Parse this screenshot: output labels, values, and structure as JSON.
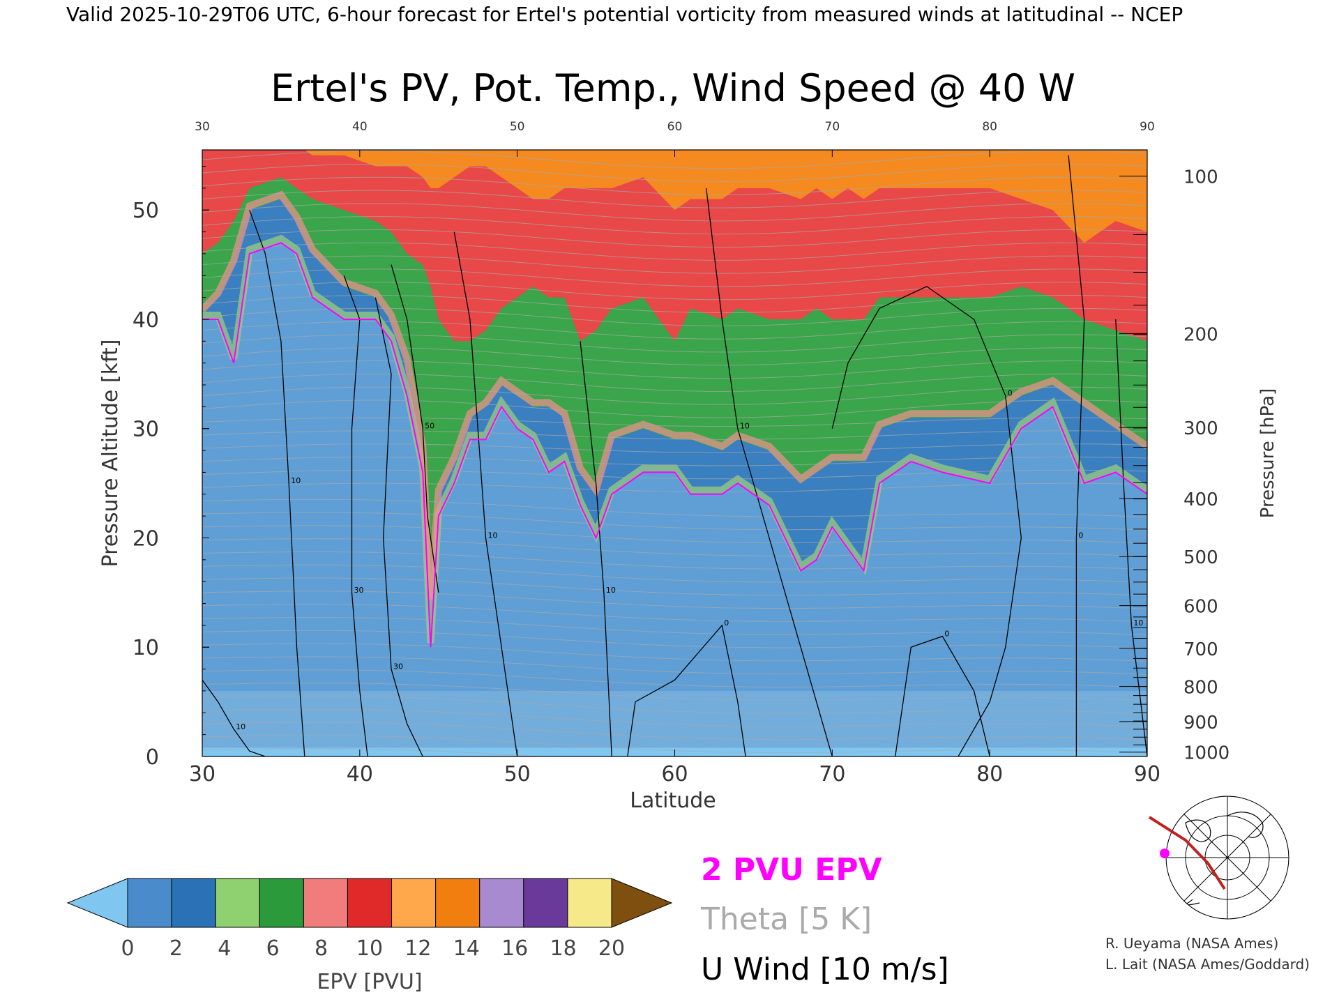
{
  "header": {
    "valid_line": "Valid 2025-10-29T06 UTC, 6-hour forecast for Ertel's potential vorticity from measured winds at latitudinal -- NCEP"
  },
  "chart_data": {
    "type": "heatmap",
    "title": "Ertel's PV, Pot. Temp., Wind Speed @ 40 W",
    "xlabel": "Latitude",
    "ylabel": "Pressure Altitude [kft]",
    "y2label": "Pressure [hPa]",
    "xlim": [
      30,
      90
    ],
    "ylim": [
      0,
      55.5
    ],
    "x_ticks": [
      30,
      40,
      50,
      60,
      70,
      80,
      90
    ],
    "x_tick_labels": [
      "30",
      "40",
      "50",
      "60",
      "70",
      "80",
      "90"
    ],
    "top_tick_labels": [
      "30",
      "40",
      "50",
      "60",
      "70",
      "80",
      "90"
    ],
    "y_ticks": [
      0,
      10,
      20,
      30,
      40,
      50
    ],
    "y_tick_labels": [
      "0",
      "10",
      "20",
      "30",
      "40",
      "50"
    ],
    "pressure_ticks": [
      {
        "label": "100",
        "kft": 53.1
      },
      {
        "label": "200",
        "kft": 38.7
      },
      {
        "label": "300",
        "kft": 30.1
      },
      {
        "label": "400",
        "kft": 23.6
      },
      {
        "label": "500",
        "kft": 18.3
      },
      {
        "label": "600",
        "kft": 13.8
      },
      {
        "label": "700",
        "kft": 9.9
      },
      {
        "label": "800",
        "kft": 6.4
      },
      {
        "label": "900",
        "kft": 3.2
      },
      {
        "label": "1000",
        "kft": 0.4
      }
    ],
    "epv_boundaries": [
      {
        "lat": 30,
        "l2": 40,
        "l6": 40.5,
        "l10": 46,
        "l14": 56
      },
      {
        "lat": 31,
        "l2": 40,
        "l6": 42,
        "l10": 47,
        "l14": 56
      },
      {
        "lat": 32,
        "l2": 36,
        "l6": 45,
        "l10": 49,
        "l14": 56
      },
      {
        "lat": 33,
        "l2": 46,
        "l6": 50,
        "l10": 52,
        "l14": 56
      },
      {
        "lat": 35,
        "l2": 47,
        "l6": 51,
        "l10": 53,
        "l14": 56
      },
      {
        "lat": 36,
        "l2": 46,
        "l6": 49,
        "l10": 52,
        "l14": 56
      },
      {
        "lat": 37,
        "l2": 42,
        "l6": 46,
        "l10": 51,
        "l14": 55
      },
      {
        "lat": 39,
        "l2": 40,
        "l6": 43,
        "l10": 50,
        "l14": 55
      },
      {
        "lat": 41,
        "l2": 40,
        "l6": 42,
        "l10": 49,
        "l14": 54
      },
      {
        "lat": 42,
        "l2": 38,
        "l6": 40,
        "l10": 48,
        "l14": 54
      },
      {
        "lat": 43,
        "l2": 33,
        "l6": 36,
        "l10": 46,
        "l14": 54
      },
      {
        "lat": 44,
        "l2": 26,
        "l6": 28,
        "l10": 45,
        "l14": 53
      },
      {
        "lat": 44.5,
        "l2": 10,
        "l6": 14,
        "l10": 43,
        "l14": 52
      },
      {
        "lat": 45,
        "l2": 22,
        "l6": 24,
        "l10": 40,
        "l14": 52
      },
      {
        "lat": 46,
        "l2": 25,
        "l6": 27,
        "l10": 38,
        "l14": 53
      },
      {
        "lat": 47,
        "l2": 29,
        "l6": 31,
        "l10": 38,
        "l14": 54
      },
      {
        "lat": 48,
        "l2": 29,
        "l6": 32,
        "l10": 39,
        "l14": 54
      },
      {
        "lat": 49,
        "l2": 32,
        "l6": 34,
        "l10": 41,
        "l14": 53
      },
      {
        "lat": 50,
        "l2": 30,
        "l6": 33,
        "l10": 42,
        "l14": 52
      },
      {
        "lat": 51,
        "l2": 29,
        "l6": 32,
        "l10": 43,
        "l14": 51
      },
      {
        "lat": 52,
        "l2": 26,
        "l6": 32,
        "l10": 42,
        "l14": 51
      },
      {
        "lat": 53,
        "l2": 27,
        "l6": 31,
        "l10": 42,
        "l14": 52
      },
      {
        "lat": 54,
        "l2": 23,
        "l6": 26,
        "l10": 38,
        "l14": 52
      },
      {
        "lat": 55,
        "l2": 20,
        "l6": 24,
        "l10": 39,
        "l14": 52
      },
      {
        "lat": 56,
        "l2": 24,
        "l6": 29,
        "l10": 41,
        "l14": 52
      },
      {
        "lat": 58,
        "l2": 26,
        "l6": 30,
        "l10": 42,
        "l14": 53
      },
      {
        "lat": 60,
        "l2": 26,
        "l6": 29,
        "l10": 38,
        "l14": 50
      },
      {
        "lat": 61,
        "l2": 24,
        "l6": 29,
        "l10": 41,
        "l14": 51
      },
      {
        "lat": 63,
        "l2": 24,
        "l6": 28,
        "l10": 40,
        "l14": 51
      },
      {
        "lat": 64,
        "l2": 25,
        "l6": 29,
        "l10": 41,
        "l14": 52
      },
      {
        "lat": 66,
        "l2": 23,
        "l6": 28,
        "l10": 40,
        "l14": 52
      },
      {
        "lat": 68,
        "l2": 17,
        "l6": 25,
        "l10": 40,
        "l14": 51
      },
      {
        "lat": 69,
        "l2": 18,
        "l6": 26,
        "l10": 41,
        "l14": 52
      },
      {
        "lat": 70,
        "l2": 21,
        "l6": 27,
        "l10": 40,
        "l14": 51
      },
      {
        "lat": 71,
        "l2": 19,
        "l6": 27,
        "l10": 40,
        "l14": 52
      },
      {
        "lat": 72,
        "l2": 17,
        "l6": 27,
        "l10": 40,
        "l14": 51
      },
      {
        "lat": 73,
        "l2": 25,
        "l6": 30,
        "l10": 42,
        "l14": 52
      },
      {
        "lat": 75,
        "l2": 27,
        "l6": 31,
        "l10": 42,
        "l14": 52
      },
      {
        "lat": 77,
        "l2": 26,
        "l6": 31,
        "l10": 42,
        "l14": 52
      },
      {
        "lat": 80,
        "l2": 25,
        "l6": 31,
        "l10": 42,
        "l14": 52
      },
      {
        "lat": 82,
        "l2": 30,
        "l6": 33,
        "l10": 43,
        "l14": 51
      },
      {
        "lat": 84,
        "l2": 32,
        "l6": 34,
        "l10": 42,
        "l14": 50
      },
      {
        "lat": 86,
        "l2": 25,
        "l6": 32,
        "l10": 40,
        "l14": 47
      },
      {
        "lat": 88,
        "l2": 26,
        "l6": 30,
        "l10": 39,
        "l14": 49
      },
      {
        "lat": 90,
        "l2": 24,
        "l6": 28,
        "l10": 38,
        "l14": 48
      }
    ],
    "u_wind_contours": [
      {
        "label": "10",
        "points": [
          [
            30,
            7
          ],
          [
            31,
            5
          ],
          [
            32,
            2.5
          ],
          [
            33,
            0.5
          ],
          [
            34,
            0
          ]
        ]
      },
      {
        "label": "10",
        "points": [
          [
            33,
            50
          ],
          [
            34,
            46
          ],
          [
            35,
            38
          ],
          [
            35.5,
            25
          ],
          [
            36,
            10
          ],
          [
            36.5,
            0
          ]
        ]
      },
      {
        "label": "30",
        "points": [
          [
            39,
            44
          ],
          [
            40,
            40
          ],
          [
            39.5,
            30
          ],
          [
            39.5,
            15
          ],
          [
            40,
            6
          ],
          [
            40.5,
            0
          ]
        ]
      },
      {
        "label": "30",
        "points": [
          [
            41,
            42
          ],
          [
            42,
            35
          ],
          [
            41.5,
            20
          ],
          [
            42,
            8
          ],
          [
            43,
            3
          ],
          [
            44,
            0
          ]
        ]
      },
      {
        "label": "50",
        "points": [
          [
            42,
            45
          ],
          [
            43,
            40
          ],
          [
            44,
            30
          ],
          [
            44.3,
            22
          ],
          [
            45,
            15
          ]
        ]
      },
      {
        "label": "10",
        "points": [
          [
            46,
            48
          ],
          [
            47,
            40
          ],
          [
            47.5,
            30
          ],
          [
            48,
            20
          ],
          [
            49,
            10
          ],
          [
            50,
            0
          ]
        ]
      },
      {
        "label": "10",
        "points": [
          [
            54,
            38
          ],
          [
            55,
            25
          ],
          [
            55.5,
            15
          ],
          [
            56,
            0
          ]
        ]
      },
      {
        "label": "10",
        "points": [
          [
            62,
            52
          ],
          [
            63,
            40
          ],
          [
            64,
            30
          ],
          [
            66,
            20
          ],
          [
            70,
            0
          ]
        ]
      },
      {
        "label": "0",
        "points": [
          [
            70,
            30
          ],
          [
            71,
            36
          ],
          [
            73,
            41
          ],
          [
            76,
            43
          ],
          [
            79,
            40
          ],
          [
            81,
            33
          ],
          [
            82,
            20
          ],
          [
            81,
            10
          ],
          [
            80,
            5
          ],
          [
            78,
            0
          ]
        ]
      },
      {
        "label": "0",
        "points": [
          [
            57,
            0
          ],
          [
            57.5,
            5
          ],
          [
            60,
            7
          ],
          [
            63,
            12
          ],
          [
            64,
            5
          ],
          [
            64.5,
            0
          ]
        ]
      },
      {
        "label": "0",
        "points": [
          [
            74,
            0
          ],
          [
            75,
            10
          ],
          [
            77,
            11
          ],
          [
            79,
            6
          ],
          [
            80,
            0
          ]
        ]
      },
      {
        "label": "0",
        "points": [
          [
            85,
            55
          ],
          [
            86,
            40
          ],
          [
            85.5,
            20
          ],
          [
            85.5,
            0
          ]
        ]
      },
      {
        "label": "10",
        "points": [
          [
            88,
            40
          ],
          [
            88.5,
            25
          ],
          [
            89,
            12
          ],
          [
            90,
            0
          ]
        ]
      }
    ]
  },
  "colorbar": {
    "label": "EPV [PVU]",
    "tick_labels": [
      "0",
      "2",
      "4",
      "6",
      "8",
      "10",
      "12",
      "14",
      "16",
      "18",
      "20"
    ],
    "colors": [
      "#4a8ccb",
      "#2a72b5",
      "#8fd070",
      "#2a9a3a",
      "#f07c7c",
      "#e02a2a",
      "#ffa74a",
      "#f07f10",
      "#a88ad0",
      "#6a3a9a",
      "#f5e98a"
    ],
    "under_color": "#7fc6f0",
    "over_color": "#7f4f10"
  },
  "legend": {
    "epv_label": "2 PVU EPV",
    "epv_color": "#ff00ff",
    "theta_label": "Theta [5 K]",
    "theta_color": "#aaaaaa",
    "wind_label": "U Wind [10 m/s]",
    "wind_color": "#000000"
  },
  "credits": {
    "line1": "R. Ueyama (NASA Ames)",
    "line2": "L. Lait (NASA Ames/Goddard)"
  },
  "inset_map": {
    "track_color": "#c0201e",
    "marker_color": "#ff00ff"
  }
}
